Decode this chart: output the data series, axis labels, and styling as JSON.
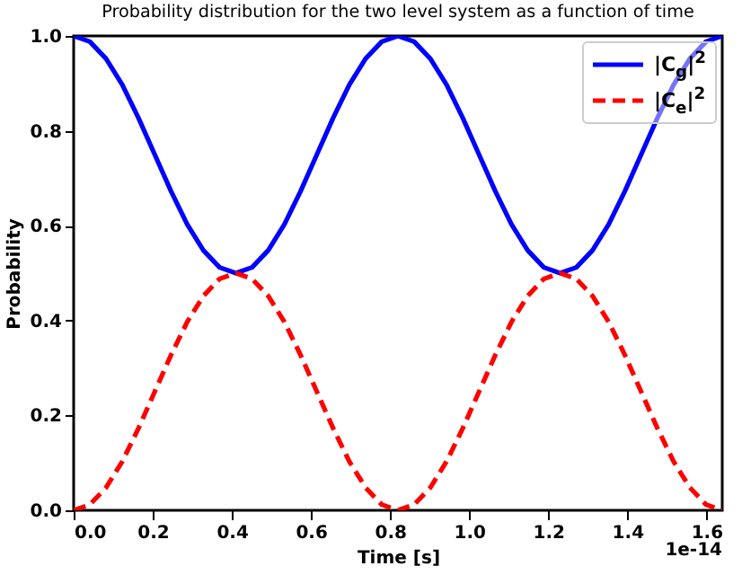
{
  "chart_data": {
    "type": "line",
    "title": "Probability distribution for the two level system as a function of time",
    "xlabel": "Time [s]",
    "ylabel": "Probability",
    "annotations": [
      "1e-14"
    ],
    "x": [
      0,
      0.041,
      0.082,
      0.123,
      0.164,
      0.205,
      0.246,
      0.287,
      0.328,
      0.369,
      0.41,
      0.451,
      0.492,
      0.533,
      0.574,
      0.615,
      0.656,
      0.697,
      0.738,
      0.779,
      0.82,
      0.861,
      0.902,
      0.943,
      0.984,
      1.025,
      1.066,
      1.107,
      1.148,
      1.189,
      1.23,
      1.271,
      1.312,
      1.353,
      1.394,
      1.435,
      1.476,
      1.517,
      1.558,
      1.599,
      1.64
    ],
    "series": [
      {
        "name": "|C$_{g}$|$^{2}$",
        "color": "#0000ff",
        "line_style": "solid",
        "values": [
          1,
          0.988,
          0.952,
          0.897,
          0.827,
          0.75,
          0.673,
          0.603,
          0.548,
          0.512,
          0.5,
          0.512,
          0.548,
          0.603,
          0.673,
          0.75,
          0.827,
          0.897,
          0.952,
          0.988,
          1,
          0.988,
          0.952,
          0.897,
          0.827,
          0.75,
          0.673,
          0.603,
          0.548,
          0.512,
          0.5,
          0.512,
          0.548,
          0.603,
          0.673,
          0.75,
          0.827,
          0.897,
          0.952,
          0.988,
          1
        ]
      },
      {
        "name": "|C$_{e}$|$^{2}$",
        "color": "#ff0000",
        "line_style": "dashed",
        "values": [
          0,
          0.012,
          0.048,
          0.103,
          0.173,
          0.25,
          0.327,
          0.397,
          0.452,
          0.488,
          0.5,
          0.488,
          0.452,
          0.397,
          0.327,
          0.25,
          0.173,
          0.103,
          0.048,
          0.012,
          0,
          0.012,
          0.048,
          0.103,
          0.173,
          0.25,
          0.327,
          0.397,
          0.452,
          0.488,
          0.5,
          0.488,
          0.452,
          0.397,
          0.327,
          0.25,
          0.173,
          0.103,
          0.048,
          0.012,
          0
        ]
      }
    ],
    "xlim": [
      0,
      1.64
    ],
    "xticks": [
      {
        "value": 0,
        "label": "0.0"
      },
      {
        "value": 0.2,
        "label": "0.2"
      },
      {
        "value": 0.4,
        "label": "0.4"
      },
      {
        "value": 0.6,
        "label": "0.6"
      },
      {
        "value": 0.8,
        "label": "0.8"
      },
      {
        "value": 1,
        "label": "1.0"
      },
      {
        "value": 1.2,
        "label": "1.2"
      },
      {
        "value": 1.4,
        "label": "1.4"
      },
      {
        "value": 1.6,
        "label": "1.6"
      }
    ],
    "ylim": [
      0,
      1
    ],
    "yticks": [
      {
        "value": 0,
        "label": "0.0"
      },
      {
        "value": 0.2,
        "label": "0.2"
      },
      {
        "value": 0.4,
        "label": "0.4"
      },
      {
        "value": 0.6,
        "label": "0.6"
      },
      {
        "value": 0.8,
        "label": "0.8"
      },
      {
        "value": 1,
        "label": "1.0"
      }
    ],
    "grid": false,
    "legend": "top right",
    "marker": "none"
  }
}
